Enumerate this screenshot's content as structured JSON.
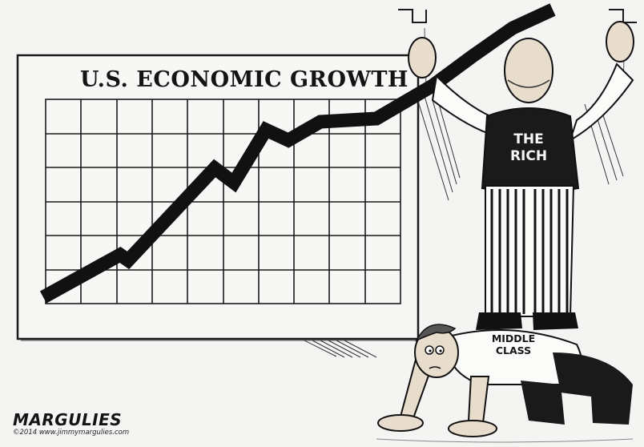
{
  "cartoon": {
    "chart_title": "U.S. ECONOMIC GROWTH",
    "vest_label_line1": "THE",
    "vest_label_line2": "RICH",
    "shirt_label_line1": "MIDDLE",
    "shirt_label_line2": "CLASS",
    "signature": "MARGULIES",
    "credit": "©2014 www.jimmymargulies.com"
  },
  "colors": {
    "paper": "#f4f4f2",
    "ink": "#141414",
    "shirt": "#fbfbf9",
    "skin": "#e8dccc"
  }
}
